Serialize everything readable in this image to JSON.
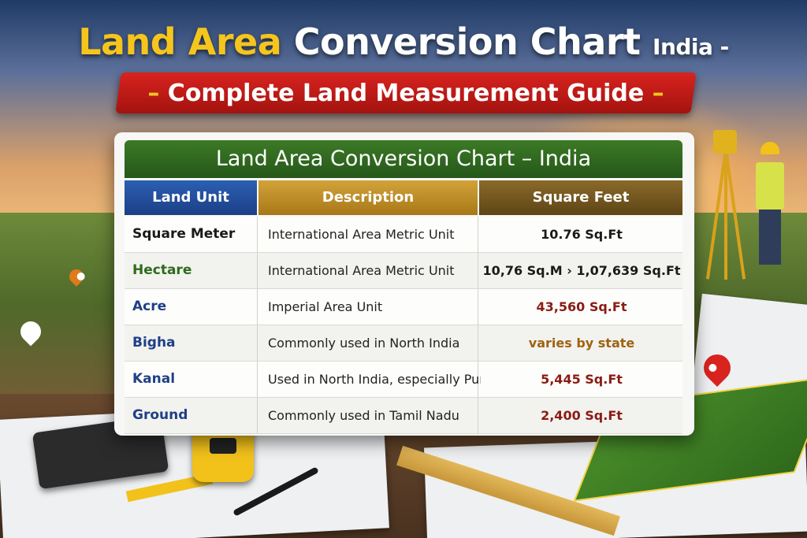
{
  "headline": {
    "part1": "Land Area",
    "part2": "Conversion Chart",
    "part3": "India -"
  },
  "banner": {
    "dash_left": "–",
    "text": "Complete Land Measurement Guide",
    "dash_right": "–"
  },
  "table": {
    "title": "Land Area Conversion Chart – India",
    "columns": [
      "Land Unit",
      "Description",
      "Square Feet"
    ],
    "rows": [
      {
        "unit": "Square Meter",
        "description": "International Area Metric Unit",
        "value": "10.76 Sq.Ft",
        "unit_color": "#1a1a1a",
        "value_color": "#1a1a1a"
      },
      {
        "unit": "Hectare",
        "description": "International Area Metric Unit",
        "value": "10,76 Sq.M › 1,07,639 Sq.Ft",
        "unit_color": "#2e6b1c",
        "value_color": "#1a1a1a"
      },
      {
        "unit": "Acre",
        "description": "Imperial Area Unit",
        "value": "43,560 Sq.Ft",
        "unit_color": "#1f3f86",
        "value_color": "#8a1c14"
      },
      {
        "unit": "Bigha",
        "description": "Commonly used in North India",
        "value": "varies by state",
        "unit_color": "#1f3f86",
        "value_color": "#a0620f"
      },
      {
        "unit": "Kanal",
        "description": "Used in North India, especially Punjab",
        "value": "5,445 Sq.Ft",
        "unit_color": "#1f3f86",
        "value_color": "#8a1c14"
      },
      {
        "unit": "Ground",
        "description": "Commonly used in Tamil Nadu",
        "value": "2,400 Sq.Ft",
        "unit_color": "#1f3f86",
        "value_color": "#8a1c14"
      }
    ]
  },
  "colors": {
    "title_yellow": "#f5c51d",
    "banner_red": "#c41b17",
    "header_green": "#2f6a1f"
  }
}
